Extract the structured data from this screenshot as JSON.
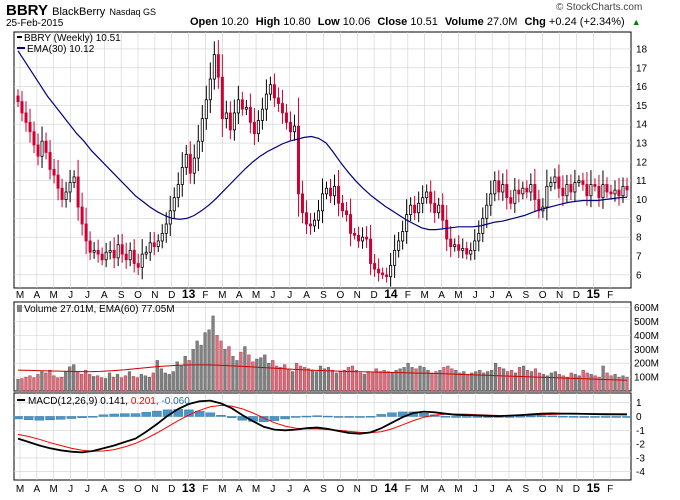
{
  "header": {
    "symbol": "BBRY",
    "name": "BlackBerry",
    "exchange": "Nasdaq GS",
    "date": "25-Feb-2015",
    "watermark": "© StockCharts.com",
    "quote": [
      {
        "label": "Open",
        "value": "10.20"
      },
      {
        "label": "High",
        "value": "10.80"
      },
      {
        "label": "Low",
        "value": "10.06"
      },
      {
        "label": "Close",
        "value": "10.51"
      },
      {
        "label": "Volume",
        "value": "27.0M"
      },
      {
        "label": "Chg",
        "value": "+0.24 (+2.34%)"
      }
    ],
    "chg_arrow": "up"
  },
  "legends": {
    "price_series": "BBRY (Weekly) 10.51",
    "ema_series": "EMA(30) 10.12",
    "volume": "Volume 27.01M, EMA(60) 77.05M",
    "macd_label": "MACD(12,26,9)",
    "macd_value": "0.141,",
    "macd_signal": "0.201,",
    "macd_hist": "-0.060"
  },
  "colors": {
    "up": "#000000",
    "down": "#cc0033",
    "ema": "#000080",
    "vol_up": "#808080",
    "vol_down": "#d8707b",
    "vol_ema": "#cc0000",
    "macd": "#000000",
    "macd_signal": "#ff0000",
    "histogram": "#4a96c8",
    "grid": "#d0d0d0"
  },
  "chart_data": {
    "type": "candlestick",
    "interval": "weekly",
    "x_axis_labels": [
      "M",
      "A",
      "M",
      "J",
      "J",
      "A",
      "S",
      "O",
      "N",
      "D",
      "13",
      "F",
      "M",
      "A",
      "M",
      "J",
      "J",
      "A",
      "S",
      "O",
      "N",
      "D",
      "14",
      "F",
      "M",
      "A",
      "M",
      "J",
      "J",
      "A",
      "S",
      "O",
      "N",
      "D",
      "15",
      "F"
    ],
    "year_labels": [
      "13",
      "14",
      "15"
    ],
    "price": {
      "ylim": [
        5.3,
        18.9
      ],
      "y_ticks": [
        "6",
        "7",
        "8",
        "9",
        "10",
        "11",
        "12",
        "13",
        "14",
        "15",
        "16",
        "17",
        "18"
      ],
      "close": [
        15.2,
        14.6,
        14.1,
        13.6,
        12.9,
        12.3,
        13.1,
        12.5,
        11.6,
        11.3,
        10.6,
        10.0,
        10.4,
        10.9,
        11.2,
        9.6,
        8.7,
        7.8,
        7.2,
        7.3,
        7.1,
        6.8,
        7.2,
        7.3,
        6.9,
        7.6,
        7.1,
        6.8,
        7.3,
        6.6,
        6.4,
        7.1,
        7.2,
        7.7,
        7.5,
        7.8,
        8.2,
        8.7,
        9.4,
        10.1,
        10.8,
        11.7,
        12.4,
        11.4,
        12.2,
        13.1,
        14.3,
        15.3,
        16.4,
        17.7,
        16.5,
        14.3,
        14.6,
        13.7,
        14.6,
        15.3,
        14.8,
        14.9,
        14.1,
        13.5,
        14.2,
        14.8,
        15.6,
        16.1,
        15.4,
        15.1,
        14.6,
        14.1,
        13.6,
        13.9,
        10.3,
        9.3,
        8.7,
        8.6,
        8.9,
        9.4,
        10.3,
        10.6,
        10.2,
        10.7,
        9.8,
        9.4,
        9.2,
        8.2,
        8.1,
        7.8,
        8.0,
        7.9,
        6.6,
        6.3,
        6.1,
        6.0,
        5.9,
        6.5,
        7.3,
        7.8,
        8.3,
        9.2,
        9.7,
        9.3,
        9.8,
        10.1,
        10.4,
        9.8,
        9.3,
        9.7,
        8.9,
        7.9,
        7.5,
        7.6,
        7.3,
        7.4,
        7.1,
        7.3,
        7.8,
        8.2,
        9.0,
        9.7,
        10.3,
        11.0,
        10.4,
        10.8,
        10.1,
        9.8,
        10.5,
        10.3,
        10.6,
        10.4,
        10.8,
        10.0,
        9.4,
        9.6,
        10.7,
        10.9,
        11.2,
        10.6,
        10.2,
        10.8,
        10.4,
        10.9,
        11.0,
        10.8,
        10.2,
        10.8,
        10.7,
        10.1,
        10.8,
        10.4,
        10.3,
        10.5,
        10.2,
        10.7,
        10.51
      ],
      "ema30": [
        17.9,
        17.3,
        16.7,
        16.1,
        15.5,
        15.0,
        14.5,
        14.0,
        13.5,
        13.1,
        12.6,
        12.2,
        11.8,
        11.4,
        11.0,
        10.6,
        10.2,
        9.9,
        9.6,
        9.35,
        9.15,
        9.0,
        8.95,
        9.0,
        9.15,
        9.4,
        9.7,
        10.05,
        10.45,
        10.85,
        11.25,
        11.65,
        12.0,
        12.3,
        12.55,
        12.75,
        12.95,
        13.1,
        13.2,
        13.3,
        13.35,
        13.25,
        13.0,
        12.5,
        11.95,
        11.45,
        11.0,
        10.6,
        10.25,
        9.95,
        9.65,
        9.4,
        9.15,
        8.9,
        8.7,
        8.5,
        8.4,
        8.4,
        8.45,
        8.5,
        8.55,
        8.55,
        8.55,
        8.6,
        8.7,
        8.8,
        8.85,
        8.95,
        9.05,
        9.15,
        9.3,
        9.45,
        9.55,
        9.65,
        9.75,
        9.85,
        9.9,
        9.95,
        9.95,
        9.95,
        10.0,
        10.05,
        10.1,
        10.12
      ],
      "ema30_note": "ema30 values are the 30-period EMA line sampled over the whole x range"
    },
    "volume": {
      "y_ticks": [
        "100M",
        "200M",
        "300M",
        "400M",
        "500M",
        "600M"
      ],
      "ylim": [
        0,
        640
      ],
      "unit": "M",
      "values": [
        85,
        90,
        100,
        110,
        95,
        120,
        140,
        130,
        150,
        110,
        95,
        100,
        140,
        175,
        190,
        140,
        120,
        150,
        120,
        105,
        110,
        95,
        90,
        130,
        100,
        120,
        95,
        110,
        140,
        105,
        95,
        120,
        110,
        100,
        130,
        220,
        160,
        130,
        120,
        140,
        210,
        180,
        250,
        220,
        300,
        360,
        330,
        420,
        440,
        540,
        400,
        360,
        300,
        320,
        250,
        220,
        280,
        320,
        260,
        210,
        230,
        240,
        260,
        200,
        220,
        180,
        170,
        190,
        160,
        140,
        200,
        180,
        170,
        160,
        150,
        140,
        180,
        160,
        170,
        150,
        130,
        140,
        150,
        170,
        180,
        150,
        130,
        120,
        140,
        130,
        160,
        140,
        150,
        140,
        130,
        150,
        160,
        170,
        200,
        170,
        160,
        180,
        170,
        150,
        130,
        140,
        150,
        170,
        180,
        160,
        150,
        130,
        140,
        120,
        130,
        140,
        150,
        130,
        140,
        150,
        200,
        170,
        160,
        140,
        150,
        130,
        170,
        180,
        150,
        140,
        160,
        130,
        120,
        110,
        130,
        140,
        120,
        110,
        100,
        130,
        120,
        110,
        150,
        130,
        120,
        110,
        100,
        180,
        130,
        110,
        120,
        100,
        110,
        100
      ],
      "ema60_line": [
        150,
        148,
        146,
        144,
        142,
        140,
        139,
        141,
        146,
        152,
        160,
        168,
        176,
        182,
        186,
        188,
        188,
        186,
        182,
        178,
        173,
        168,
        163,
        158,
        154,
        150,
        147,
        144,
        141,
        139,
        137,
        135,
        133,
        131,
        129,
        127,
        125,
        122,
        119,
        116,
        113,
        110,
        107,
        104,
        101,
        98,
        95,
        92,
        89,
        86,
        83,
        80,
        77.05
      ]
    },
    "macd": {
      "ylim": [
        -4.6,
        1.7
      ],
      "y_ticks": [
        "-4",
        "-3",
        "-2",
        "-1",
        "0",
        "1"
      ],
      "macd_line": [
        -1.6,
        -1.85,
        -2.1,
        -2.3,
        -2.45,
        -2.55,
        -2.6,
        -2.5,
        -2.3,
        -2.1,
        -1.85,
        -1.6,
        -1.1,
        -0.55,
        0.05,
        0.55,
        0.9,
        1.1,
        1.15,
        0.95,
        0.6,
        0.1,
        -0.35,
        -0.75,
        -0.95,
        -1.0,
        -0.95,
        -0.85,
        -0.8,
        -0.9,
        -1.05,
        -1.2,
        -1.25,
        -1.15,
        -0.85,
        -0.45,
        -0.05,
        0.25,
        0.35,
        0.3,
        0.2,
        0.12,
        0.1,
        0.08,
        0.05,
        0.03,
        0.06,
        0.1,
        0.15,
        0.2,
        0.22,
        0.21,
        0.2,
        0.19,
        0.17,
        0.16,
        0.15,
        0.141
      ],
      "signal_line": [
        -1.3,
        -1.45,
        -1.65,
        -1.9,
        -2.1,
        -2.3,
        -2.45,
        -2.52,
        -2.5,
        -2.4,
        -2.2,
        -1.95,
        -1.6,
        -1.2,
        -0.75,
        -0.3,
        0.1,
        0.45,
        0.7,
        0.8,
        0.75,
        0.55,
        0.25,
        -0.1,
        -0.45,
        -0.7,
        -0.85,
        -0.9,
        -0.9,
        -0.95,
        -1.0,
        -1.08,
        -1.15,
        -1.17,
        -1.1,
        -0.9,
        -0.6,
        -0.3,
        -0.05,
        0.1,
        0.17,
        0.18,
        0.16,
        0.13,
        0.1,
        0.07,
        0.06,
        0.07,
        0.09,
        0.12,
        0.15,
        0.17,
        0.19,
        0.2,
        0.2,
        0.2,
        0.2,
        0.201
      ],
      "histogram_note": "histogram = macd_line - signal_line"
    }
  }
}
